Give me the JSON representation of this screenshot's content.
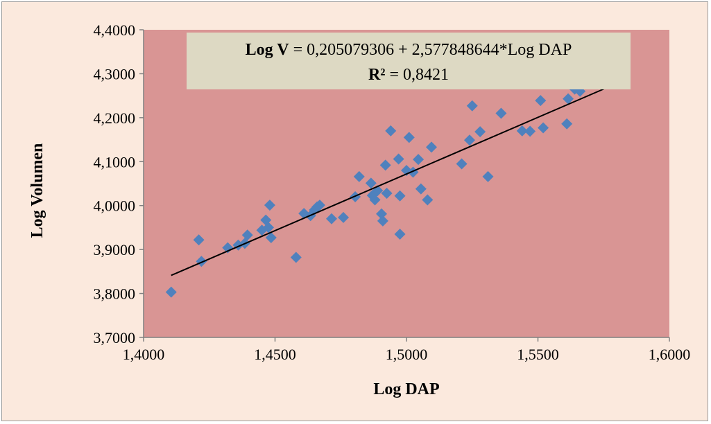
{
  "chart_data": {
    "type": "scatter",
    "xlabel": "Log DAP",
    "ylabel": "Log Volumen",
    "xlim": [
      1.4,
      1.6
    ],
    "ylim": [
      3.7,
      4.4
    ],
    "x_ticks": [
      "1,4000",
      "1,4500",
      "1,5000",
      "1,5500",
      "1,6000"
    ],
    "y_ticks": [
      "3,7000",
      "3,8000",
      "3,9000",
      "4,0000",
      "4,1000",
      "4,2000",
      "4,3000",
      "4,4000"
    ],
    "grid": false,
    "colors": {
      "plot_bg": "#d99594",
      "marker": "#4f81bd",
      "trendline": "#000000",
      "annotation_bg": "#ddd9c3",
      "frame_bg": "#fbe9dd"
    },
    "annotation": {
      "line1_bold": "Log V",
      "line1_rest": " = 0,205079306 + 2,577848644*Log DAP",
      "line2_bold": "R²",
      "line2_rest": " = 0,8421"
    },
    "trendline": {
      "intercept": 0.205079306,
      "slope": 2.577848644,
      "x_range": [
        1.4105,
        1.575
      ]
    },
    "points": [
      [
        1.4105,
        3.803
      ],
      [
        1.421,
        3.922
      ],
      [
        1.422,
        3.873
      ],
      [
        1.432,
        3.904
      ],
      [
        1.436,
        3.91
      ],
      [
        1.4385,
        3.914
      ],
      [
        1.4395,
        3.933
      ],
      [
        1.445,
        3.944
      ],
      [
        1.4465,
        3.967
      ],
      [
        1.4475,
        3.95
      ],
      [
        1.448,
        4.001
      ],
      [
        1.4485,
        3.927
      ],
      [
        1.458,
        3.882
      ],
      [
        1.461,
        3.982
      ],
      [
        1.4635,
        3.977
      ],
      [
        1.465,
        3.99
      ],
      [
        1.466,
        3.997
      ],
      [
        1.467,
        4.001
      ],
      [
        1.4715,
        3.97
      ],
      [
        1.476,
        3.973
      ],
      [
        1.4805,
        4.02
      ],
      [
        1.482,
        4.066
      ],
      [
        1.4865,
        4.051
      ],
      [
        1.487,
        4.023
      ],
      [
        1.488,
        4.013
      ],
      [
        1.489,
        4.034
      ],
      [
        1.4905,
        3.981
      ],
      [
        1.491,
        3.965
      ],
      [
        1.492,
        4.092
      ],
      [
        1.4925,
        4.028
      ],
      [
        1.494,
        4.17
      ],
      [
        1.497,
        4.106
      ],
      [
        1.4975,
        4.022
      ],
      [
        1.4975,
        3.935
      ],
      [
        1.5,
        4.08
      ],
      [
        1.501,
        4.155
      ],
      [
        1.5025,
        4.076
      ],
      [
        1.5045,
        4.105
      ],
      [
        1.5055,
        4.038
      ],
      [
        1.508,
        4.013
      ],
      [
        1.5095,
        4.133
      ],
      [
        1.521,
        4.095
      ],
      [
        1.524,
        4.149
      ],
      [
        1.525,
        4.227
      ],
      [
        1.528,
        4.168
      ],
      [
        1.531,
        4.066
      ],
      [
        1.536,
        4.21
      ],
      [
        1.544,
        4.17
      ],
      [
        1.547,
        4.169
      ],
      [
        1.551,
        4.239
      ],
      [
        1.552,
        4.177
      ],
      [
        1.561,
        4.186
      ],
      [
        1.5615,
        4.243
      ],
      [
        1.564,
        4.265
      ],
      [
        1.566,
        4.26
      ]
    ]
  }
}
